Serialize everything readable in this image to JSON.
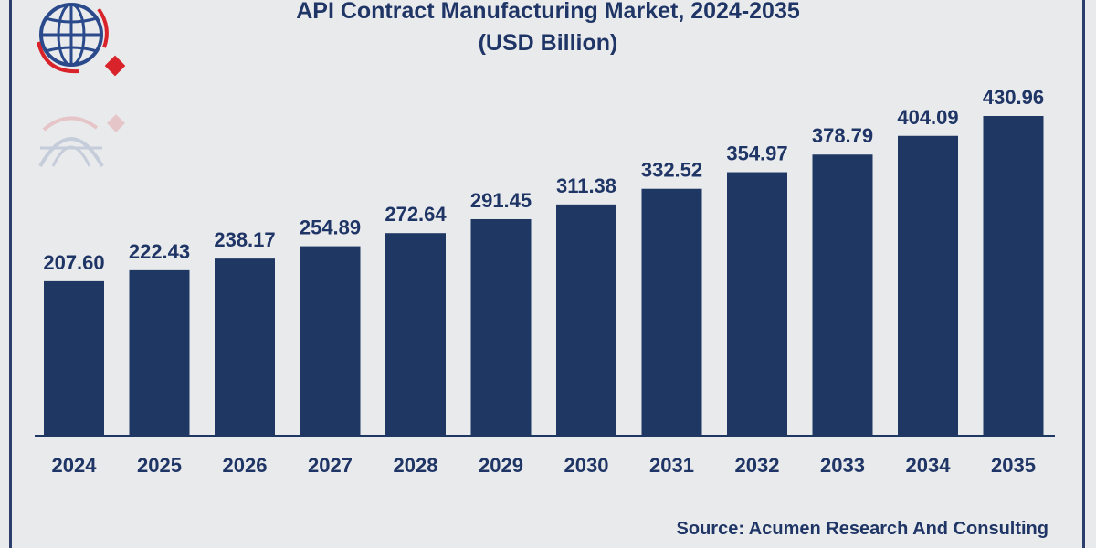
{
  "chart_data": {
    "type": "bar",
    "title": "API Contract Manufacturing Market, 2024-2035",
    "subtitle": "(USD Billion)",
    "categories": [
      "2024",
      "2025",
      "2026",
      "2027",
      "2028",
      "2029",
      "2030",
      "2031",
      "2032",
      "2033",
      "2034",
      "2035"
    ],
    "values": [
      207.6,
      222.43,
      238.17,
      254.89,
      272.64,
      291.45,
      311.38,
      332.52,
      354.97,
      378.79,
      404.09,
      430.96
    ],
    "value_labels": [
      "207.60",
      "222.43",
      "238.17",
      "254.89",
      "272.64",
      "291.45",
      "311.38",
      "332.52",
      "354.97",
      "378.79",
      "404.09",
      "430.96"
    ],
    "ylim": [
      0,
      460
    ],
    "grid": false,
    "bar_color": "#1e3763"
  },
  "source": "Source: Acumen Research And Consulting",
  "colors": {
    "text": "#1f3566",
    "logo_blue": "#2a4a8c",
    "logo_red": "#d8232a"
  },
  "icons": {
    "logo": "globe-logo-icon"
  }
}
